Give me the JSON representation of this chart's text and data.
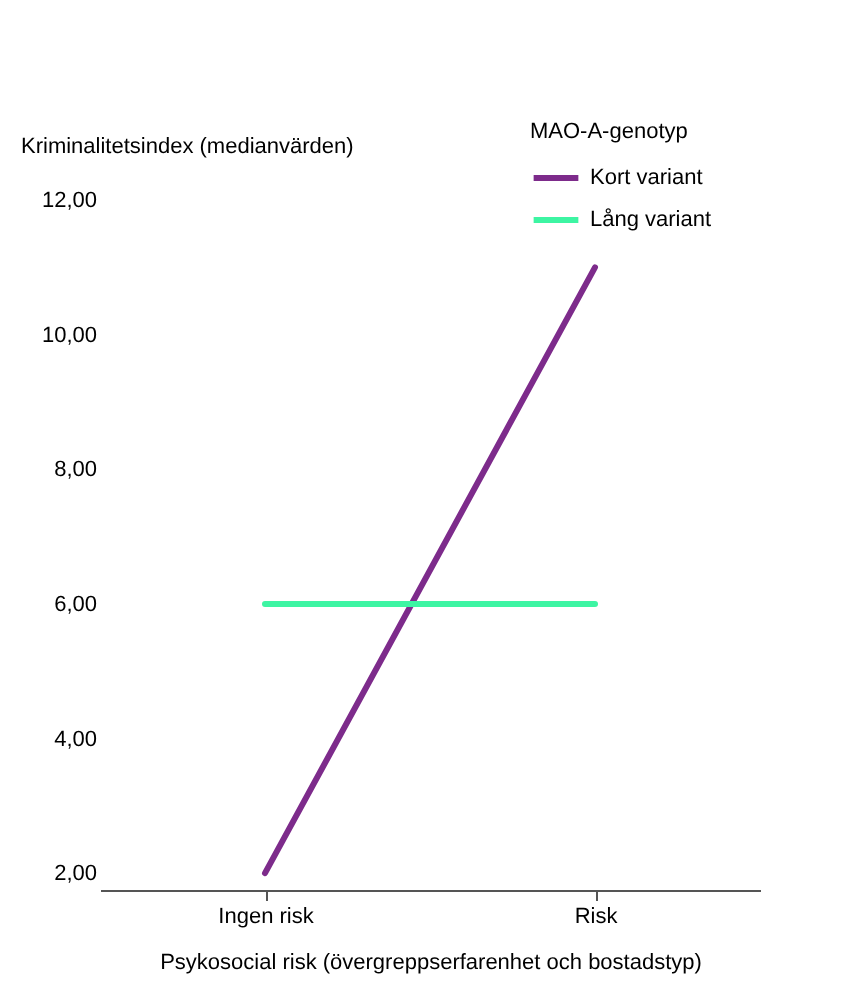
{
  "chart_data": {
    "type": "line",
    "ylabel": "Kriminalitetsindex (medianvärden)",
    "xlabel": "Psykosocial risk (övergreppserfarenhet och bostadstyp)",
    "legend_title": "MAO-A-genotyp",
    "categories": [
      "Ingen risk",
      "Risk"
    ],
    "series": [
      {
        "name": "Kort variant",
        "color": "#7d2b8b",
        "values": [
          2.0,
          11.0
        ]
      },
      {
        "name": "Lång variant",
        "color": "#3df5a3",
        "values": [
          6.0,
          6.0
        ]
      }
    ],
    "ylim": [
      1.75,
      12
    ],
    "yticks": [
      {
        "value": 2,
        "label": "2,00"
      },
      {
        "value": 4,
        "label": "4,00"
      },
      {
        "value": 6,
        "label": "6,00"
      },
      {
        "value": 8,
        "label": "8,00"
      },
      {
        "value": 10,
        "label": "10,00"
      },
      {
        "value": 12,
        "label": "12,00"
      }
    ],
    "grid": false,
    "legend": "top right",
    "marker": "none",
    "line_style": "solid"
  }
}
